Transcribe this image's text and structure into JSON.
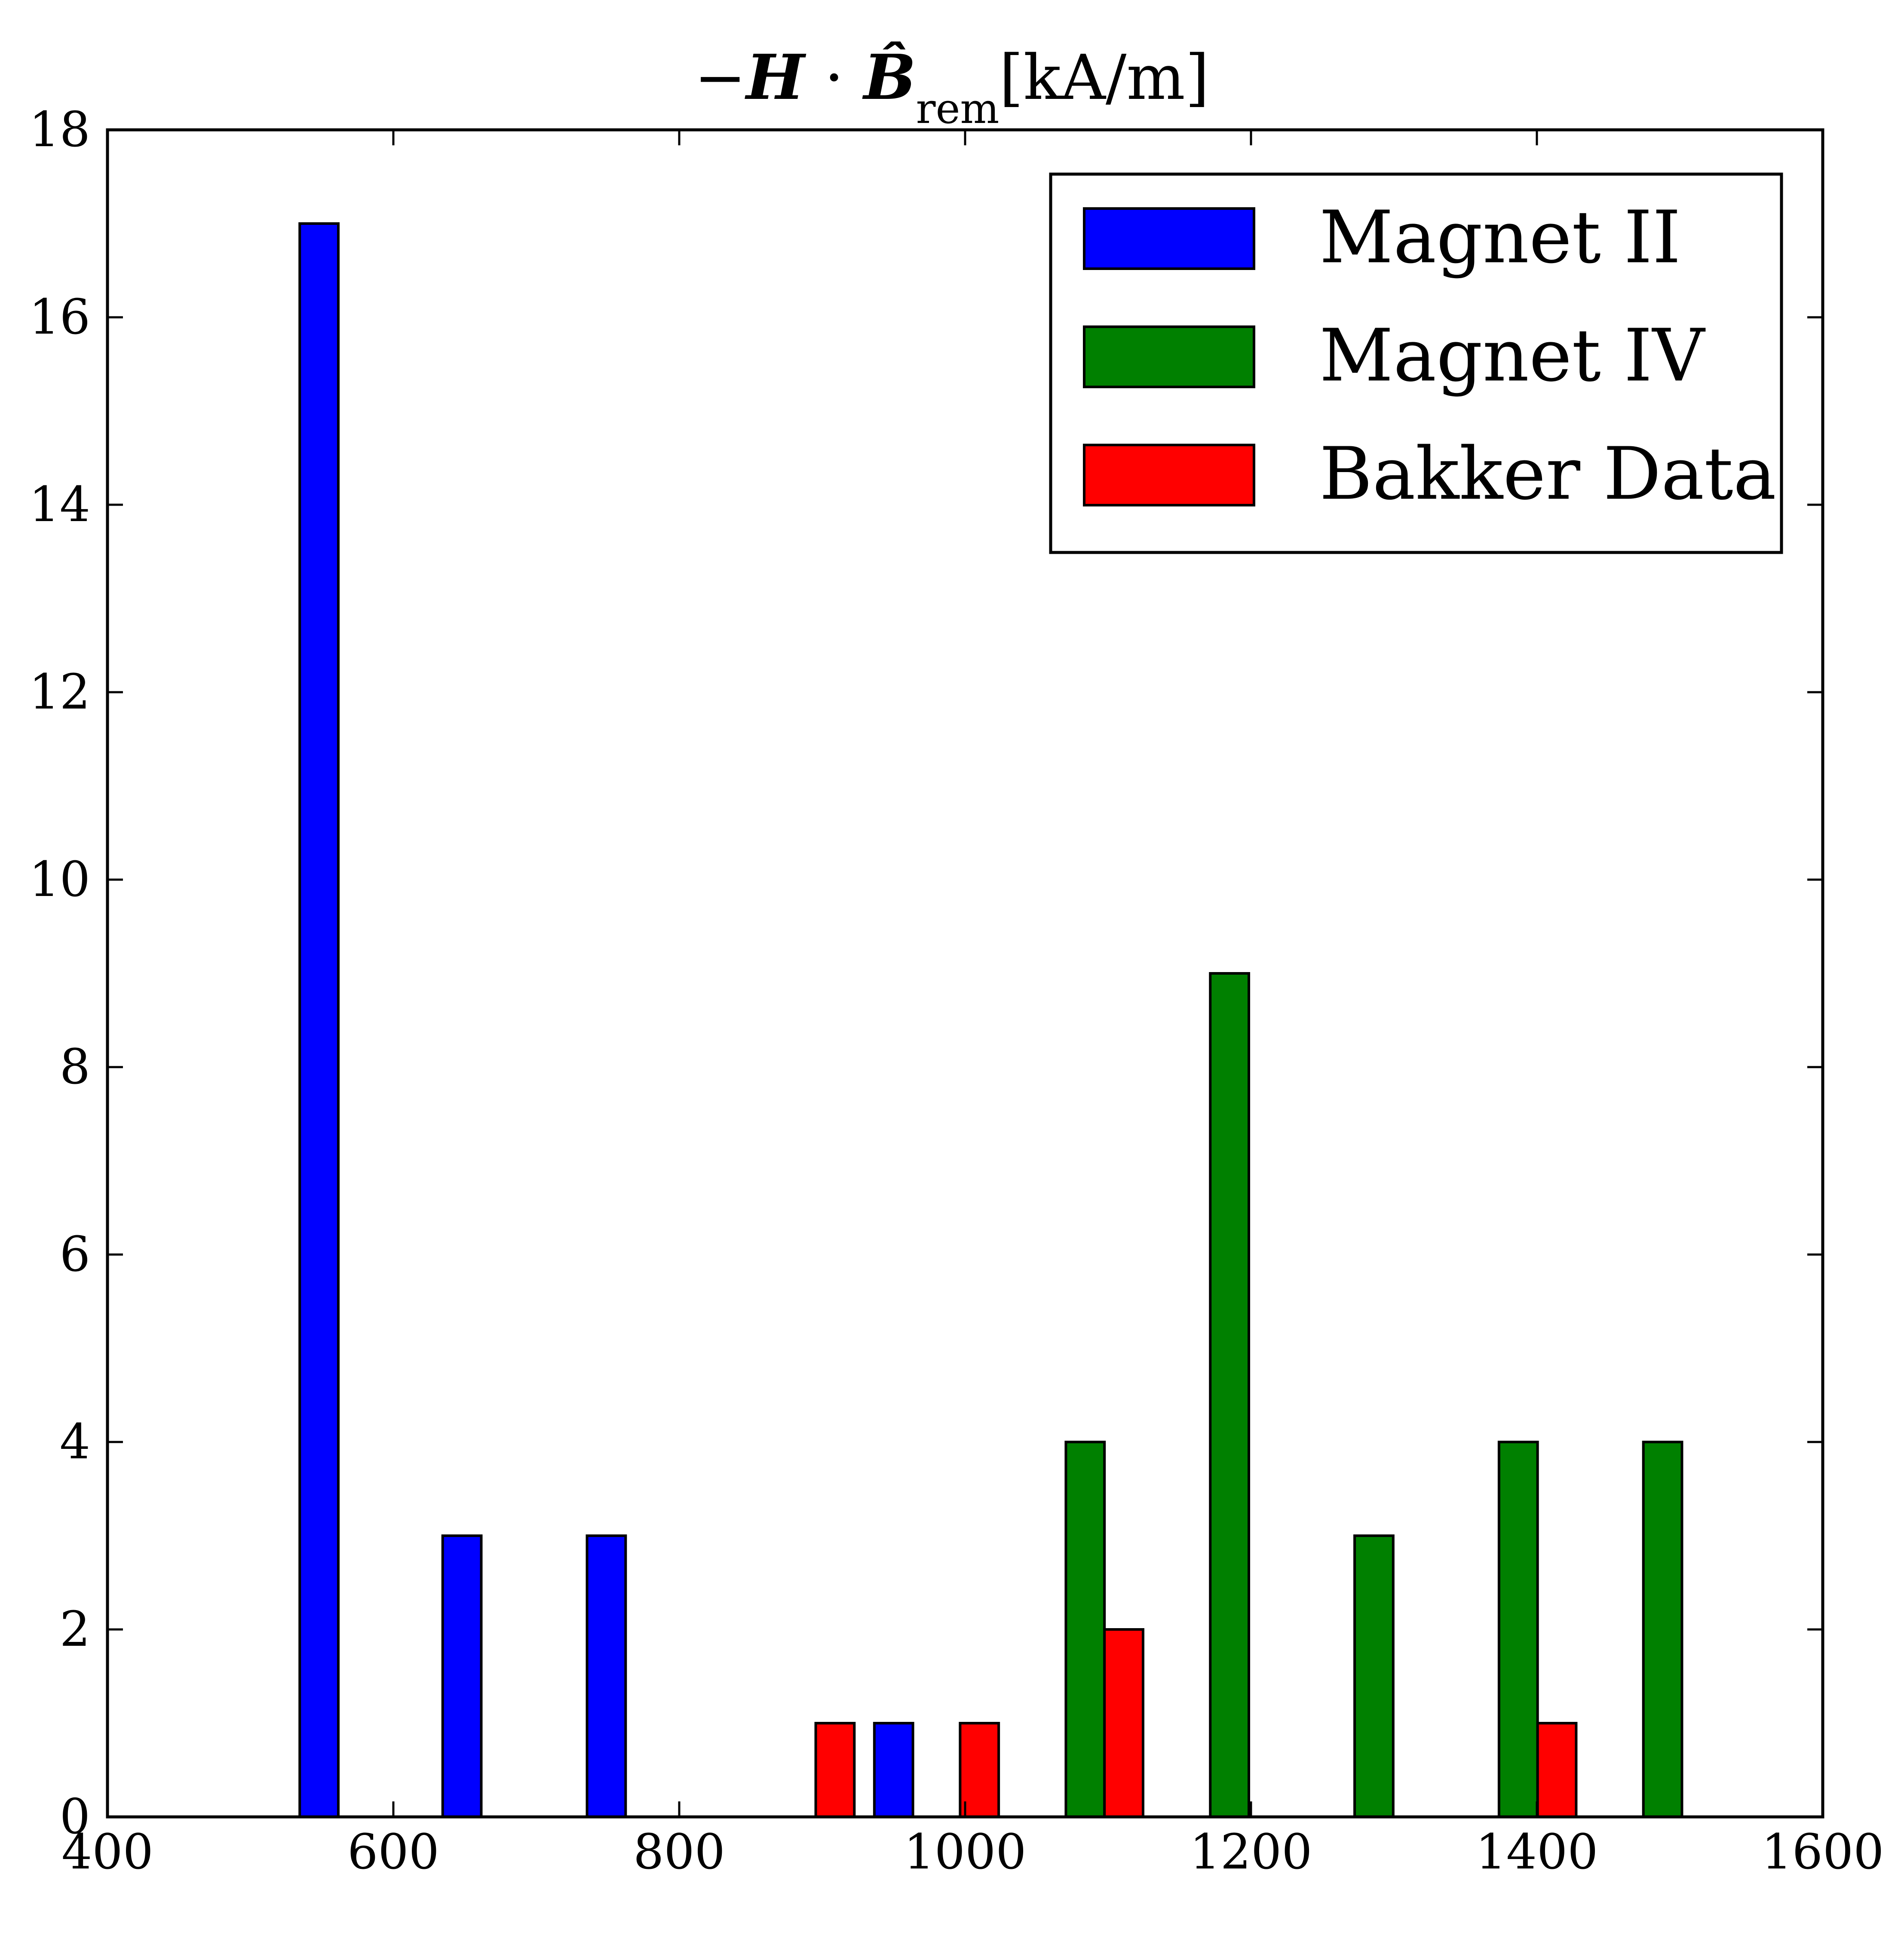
{
  "chart_data": {
    "type": "bar",
    "title": {
      "prefix": "−",
      "bold1": "H",
      "middle": " · ",
      "bold2": "B̂",
      "subscript": "rem",
      "suffix": "[kA/m]"
    },
    "xlabel": "",
    "ylabel": "",
    "xlim": [
      400,
      1600
    ],
    "ylim": [
      0,
      18
    ],
    "x_ticks": [
      "400",
      "600",
      "800",
      "1000",
      "1200",
      "1400",
      "1600"
    ],
    "y_ticks": [
      "0",
      "2",
      "4",
      "6",
      "8",
      "10",
      "12",
      "14",
      "16",
      "18"
    ],
    "grid": false,
    "legend_position": "top-right",
    "series": [
      {
        "name": "Magnet II",
        "color": "#0000ff",
        "bars": [
          {
            "x": 548,
            "value": 17
          },
          {
            "x": 648,
            "value": 3
          },
          {
            "x": 749,
            "value": 3
          },
          {
            "x": 950,
            "value": 1
          }
        ]
      },
      {
        "name": "Magnet IV",
        "color": "#008000",
        "bars": [
          {
            "x": 1084,
            "value": 4
          },
          {
            "x": 1185,
            "value": 9
          },
          {
            "x": 1286,
            "value": 3
          },
          {
            "x": 1387,
            "value": 4
          },
          {
            "x": 1488,
            "value": 4
          }
        ]
      },
      {
        "name": "Bakker Data",
        "color": "#ff0000",
        "bars": [
          {
            "x": 909,
            "value": 1
          },
          {
            "x": 1010,
            "value": 1
          },
          {
            "x": 1111,
            "value": 2
          },
          {
            "x": 1414,
            "value": 1
          }
        ]
      }
    ]
  }
}
